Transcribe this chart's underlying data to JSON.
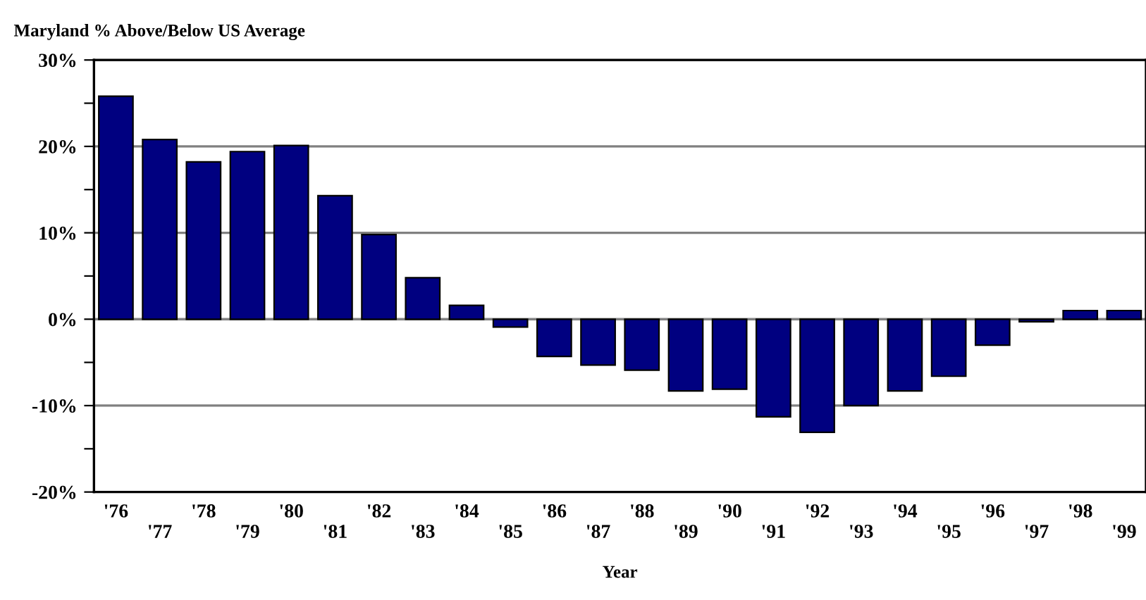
{
  "chart_data": {
    "type": "bar",
    "title": "Maryland % Above/Below US Average",
    "xlabel": "Year",
    "categories": [
      "'76",
      "'77",
      "'78",
      "'79",
      "'80",
      "'81",
      "'82",
      "'83",
      "'84",
      "'85",
      "'86",
      "'87",
      "'88",
      "'89",
      "'90",
      "'91",
      "'92",
      "'93",
      "'94",
      "'95",
      "'96",
      "'97",
      "'98",
      "'99"
    ],
    "values": [
      25.8,
      20.8,
      18.2,
      19.4,
      20.1,
      14.3,
      9.8,
      4.8,
      1.6,
      -0.9,
      -4.3,
      -5.3,
      -5.9,
      -8.3,
      -8.1,
      -11.3,
      -13.1,
      -10.0,
      -8.3,
      -6.6,
      -3.0,
      -0.3,
      1.0,
      1.0
    ],
    "color": "#000080",
    "ylim": [
      -20,
      30
    ],
    "yticks": [
      {
        "value": -20,
        "label": "-20%"
      },
      {
        "value": -15,
        "label": null
      },
      {
        "value": -10,
        "label": "-10%"
      },
      {
        "value": -5,
        "label": null
      },
      {
        "value": 0,
        "label": "0%"
      },
      {
        "value": 5,
        "label": null
      },
      {
        "value": 10,
        "label": "10%"
      },
      {
        "value": 15,
        "label": null
      },
      {
        "value": 20,
        "label": "20%"
      },
      {
        "value": 25,
        "label": null
      },
      {
        "value": 30,
        "label": "30%"
      }
    ],
    "grid": "y"
  }
}
